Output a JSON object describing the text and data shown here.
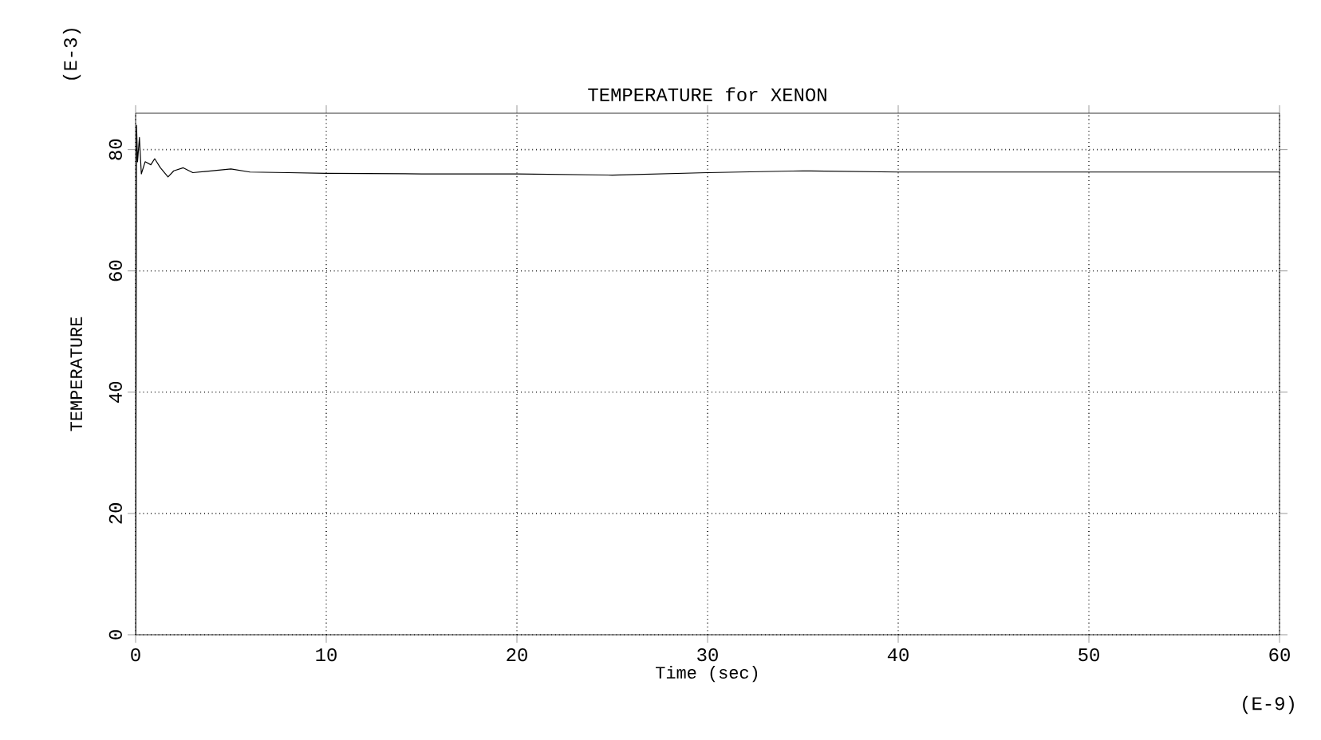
{
  "chart_data": {
    "type": "line",
    "title": "TEMPERATURE for XENON",
    "xlabel": "Time  (sec)",
    "ylabel": "TEMPERATURE",
    "annotations": [
      "(E-3)",
      "(E-9)"
    ],
    "x": [
      0,
      0.05,
      0.1,
      0.2,
      0.3,
      0.5,
      0.8,
      1,
      1.3,
      1.7,
      2,
      2.5,
      3,
      4,
      5,
      6,
      8,
      10,
      15,
      20,
      25,
      30,
      35,
      40,
      50,
      60
    ],
    "series": [
      {
        "color": "#000000",
        "values": [
          0,
          84,
          78,
          82,
          76,
          78,
          77.5,
          78.5,
          77,
          75.5,
          76.5,
          77,
          76.2,
          76.5,
          76.8,
          76.3,
          76.2,
          76.1,
          76,
          76,
          75.8,
          76.2,
          76.5,
          76.3,
          76.3,
          76.3
        ]
      }
    ],
    "xlim": [
      0,
      60
    ],
    "ylim": [
      0,
      86
    ],
    "xticks": [
      0,
      10,
      20,
      30,
      40,
      50,
      60
    ],
    "yticks": [
      0,
      20,
      40,
      60,
      80
    ],
    "grid": true,
    "marker": "none",
    "line_style": "solid"
  }
}
